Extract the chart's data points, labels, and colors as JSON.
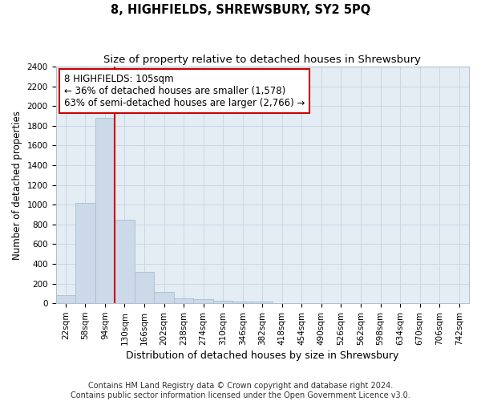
{
  "title": "8, HIGHFIELDS, SHREWSBURY, SY2 5PQ",
  "subtitle": "Size of property relative to detached houses in Shrewsbury",
  "xlabel": "Distribution of detached houses by size in Shrewsbury",
  "ylabel": "Number of detached properties",
  "footer_line1": "Contains HM Land Registry data © Crown copyright and database right 2024.",
  "footer_line2": "Contains public sector information licensed under the Open Government Licence v3.0.",
  "bin_labels": [
    "22sqm",
    "58sqm",
    "94sqm",
    "130sqm",
    "166sqm",
    "202sqm",
    "238sqm",
    "274sqm",
    "310sqm",
    "346sqm",
    "382sqm",
    "418sqm",
    "454sqm",
    "490sqm",
    "526sqm",
    "562sqm",
    "598sqm",
    "634sqm",
    "670sqm",
    "706sqm",
    "742sqm"
  ],
  "bar_values": [
    80,
    1020,
    1880,
    850,
    320,
    115,
    50,
    40,
    30,
    20,
    15,
    0,
    0,
    0,
    0,
    0,
    0,
    0,
    0,
    0,
    0
  ],
  "bar_color": "#ccd9e8",
  "bar_edgecolor": "#a8bfd4",
  "grid_color": "#c8d4e4",
  "background_color": "#e4ecf4",
  "vline_x": 2.5,
  "vline_color": "#cc0000",
  "annotation_line1": "8 HIGHFIELDS: 105sqm",
  "annotation_line2": "← 36% of detached houses are smaller (1,578)",
  "annotation_line3": "63% of semi-detached houses are larger (2,766) →",
  "annotation_box_color": "#cc0000",
  "ylim": [
    0,
    2400
  ],
  "yticks": [
    0,
    200,
    400,
    600,
    800,
    1000,
    1200,
    1400,
    1600,
    1800,
    2000,
    2200,
    2400
  ],
  "title_fontsize": 10.5,
  "subtitle_fontsize": 9.5,
  "annotation_fontsize": 8.5,
  "ylabel_fontsize": 8.5,
  "xlabel_fontsize": 9,
  "tick_fontsize": 7.5,
  "footer_fontsize": 7
}
